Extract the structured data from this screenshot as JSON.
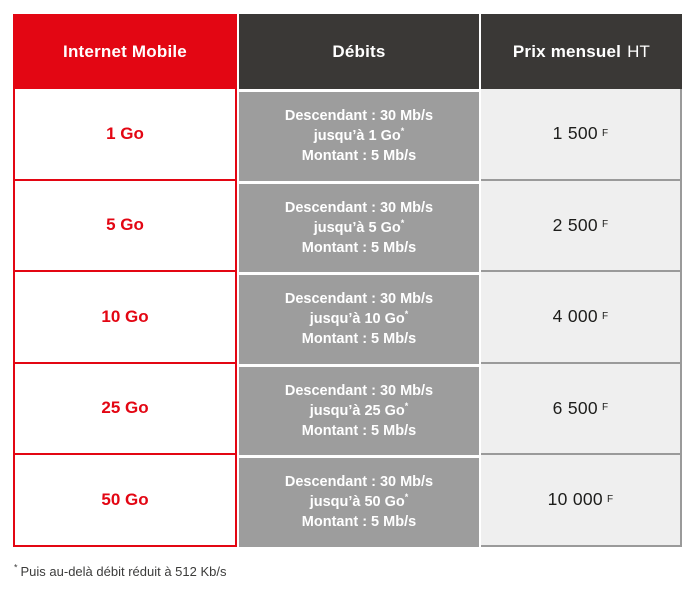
{
  "colors": {
    "brand_red": "#e30613",
    "header_dark": "#3a3836",
    "debits_gray": "#9d9d9d",
    "price_bg": "#efefef",
    "price_separator": "#9a9a9a",
    "price_text": "#1d1d1b",
    "footnote_text": "#3c3c3b"
  },
  "table": {
    "headers": {
      "col1": "Internet Mobile",
      "col2": "Débits",
      "col3_bold": "Prix mensuel",
      "col3_regular": "HT"
    },
    "currency": "F",
    "footnote_marker": "*",
    "footnote": "Puis au-delà débit réduit à 512 Kb/s",
    "rows": [
      {
        "plan": "1 Go",
        "debit": [
          "Descendant : 30 Mb/s",
          "jusqu’à 1 Go",
          "Montant : 5 Mb/s"
        ],
        "price": "1 500"
      },
      {
        "plan": "5 Go",
        "debit": [
          "Descendant : 30 Mb/s",
          "jusqu’à 5 Go",
          "Montant : 5 Mb/s"
        ],
        "price": "2 500"
      },
      {
        "plan": "10 Go",
        "debit": [
          "Descendant : 30 Mb/s",
          "jusqu’à 10 Go",
          "Montant : 5 Mb/s"
        ],
        "price": "4 000"
      },
      {
        "plan": "25 Go",
        "debit": [
          "Descendant : 30 Mb/s",
          "jusqu’à 25 Go",
          "Montant : 5 Mb/s"
        ],
        "price": "6 500"
      },
      {
        "plan": "50 Go",
        "debit": [
          "Descendant : 30 Mb/s",
          "jusqu’à 50 Go",
          "Montant : 5 Mb/s"
        ],
        "price": "10 000"
      }
    ]
  }
}
